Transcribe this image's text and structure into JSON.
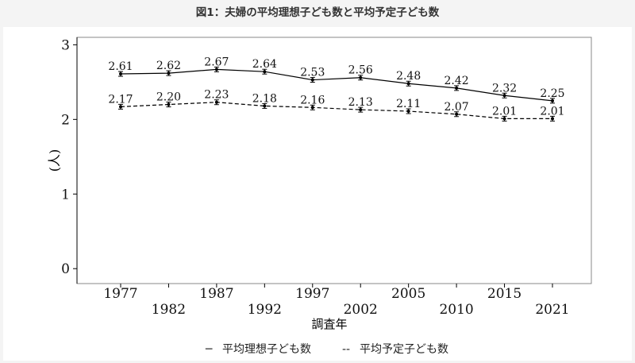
{
  "title": "図1：夫婦の平均理想子ども数と平均予定子ども数",
  "chart_data": {
    "type": "line",
    "title": "図1：夫婦の平均理想子ども数と平均予定子ども数",
    "xlabel": "調査年",
    "ylabel": "(人)",
    "categories": [
      "1977",
      "1982",
      "1987",
      "1992",
      "1997",
      "2002",
      "2005",
      "2010",
      "2015",
      "2021"
    ],
    "yticks": [
      "0",
      "1",
      "2",
      "3"
    ],
    "ylim": [
      -0.2,
      3.1
    ],
    "x": [
      1977,
      1982,
      1987,
      1992,
      1997,
      2002,
      2005,
      2010,
      2015,
      2021
    ],
    "series": [
      {
        "name": "平均理想子ども数",
        "legend_symbol": "─",
        "line_style": "solid",
        "values": [
          2.61,
          2.62,
          2.67,
          2.64,
          2.53,
          2.56,
          2.48,
          2.42,
          2.32,
          2.25
        ],
        "labels": [
          "2.61",
          "2.62",
          "2.67",
          "2.64",
          "2.53",
          "2.56",
          "2.48",
          "2.42",
          "2.32",
          "2.25"
        ]
      },
      {
        "name": "平均予定子ども数",
        "legend_symbol": "--",
        "line_style": "dashed",
        "values": [
          2.17,
          2.2,
          2.23,
          2.18,
          2.16,
          2.13,
          2.11,
          2.07,
          2.01,
          2.01
        ],
        "labels": [
          "2.17",
          "2.20",
          "2.23",
          "2.18",
          "2.16",
          "2.13",
          "2.11",
          "2.07",
          "2.01",
          "2.01"
        ]
      }
    ],
    "error_bars": true,
    "grid": false,
    "legend_position": "bottom-center",
    "colors": {
      "line": "#000000",
      "axis": "#000000",
      "frame": "#888888"
    }
  }
}
